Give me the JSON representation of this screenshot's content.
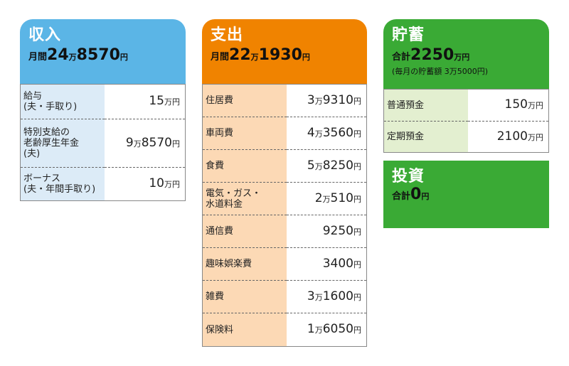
{
  "income": {
    "title": "収入",
    "total_prefix": "月間",
    "total": "24万8570円",
    "color": "#5bb5e6",
    "label_bg": "#dcebf7",
    "rows": [
      {
        "label": "給与\n(夫・手取り)",
        "amount": "15万円"
      },
      {
        "label": "特別支給の\n老齢厚生年金\n(夫)",
        "amount": "9万8570円"
      },
      {
        "label": "ボーナス\n(夫・年間手取り)",
        "amount": "10万円"
      }
    ]
  },
  "expense": {
    "title": "支出",
    "total_prefix": "月間",
    "total": "22万1930円",
    "color": "#f08300",
    "label_bg": "#fcd9b5",
    "rows": [
      {
        "label": "住居費",
        "amount": "3万9310円"
      },
      {
        "label": "車両費",
        "amount": "4万3560円"
      },
      {
        "label": "食費",
        "amount": "5万8250円"
      },
      {
        "label": "電気・ガス・\n水道料金",
        "amount": "2万510円"
      },
      {
        "label": "通信費",
        "amount": "9250円"
      },
      {
        "label": "趣味娯楽費",
        "amount": "3400円"
      },
      {
        "label": "雑費",
        "amount": "3万1600円"
      },
      {
        "label": "保険料",
        "amount": "1万6050円"
      }
    ]
  },
  "savings": {
    "title": "貯蓄",
    "total_prefix": "合計",
    "total": "2250万円",
    "note": "(毎月の貯蓄額 3万5000円)",
    "color": "#3aaa35",
    "label_bg": "#e3efd0",
    "rows": [
      {
        "label": "普通預金",
        "amount": "150万円"
      },
      {
        "label": "定期預金",
        "amount": "2100万円"
      }
    ]
  },
  "investment": {
    "title": "投資",
    "total_prefix": "合計",
    "total": "0円",
    "color": "#3aaa35"
  }
}
